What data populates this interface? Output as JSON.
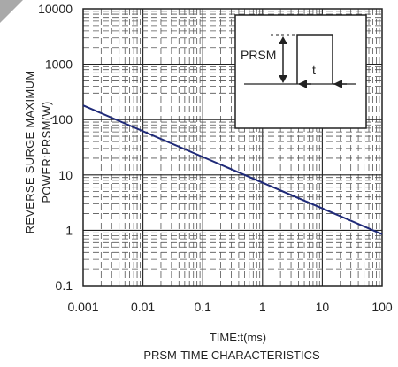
{
  "chart_data": {
    "type": "line",
    "title": "PRSM-TIME CHARACTERISTICS",
    "xlabel": "TIME:t(ms)",
    "ylabel_lines": [
      "REVERSE   SURGE MAXIMUM",
      "POWER:PRSM(W)"
    ],
    "x_scale": "log",
    "y_scale": "log",
    "xlim": [
      0.001,
      100
    ],
    "ylim": [
      0.1,
      10000
    ],
    "x_ticks": [
      "0.001",
      "0.01",
      "0.1",
      "1",
      "10",
      "100"
    ],
    "y_ticks": [
      "10000",
      "1000",
      "100",
      "10",
      "1",
      "0.1"
    ],
    "grid": true,
    "series": [
      {
        "x": [
          0.001,
          100
        ],
        "y": [
          180,
          0.85
        ],
        "color": "#1f2a78"
      }
    ],
    "inset": {
      "label_prsm": "PRSM",
      "label_t": "t"
    }
  },
  "colors": {
    "line": "#1f2a78",
    "grid_major": "#222222",
    "grid_minor": "#555555",
    "corner": "#a9a9a9"
  }
}
